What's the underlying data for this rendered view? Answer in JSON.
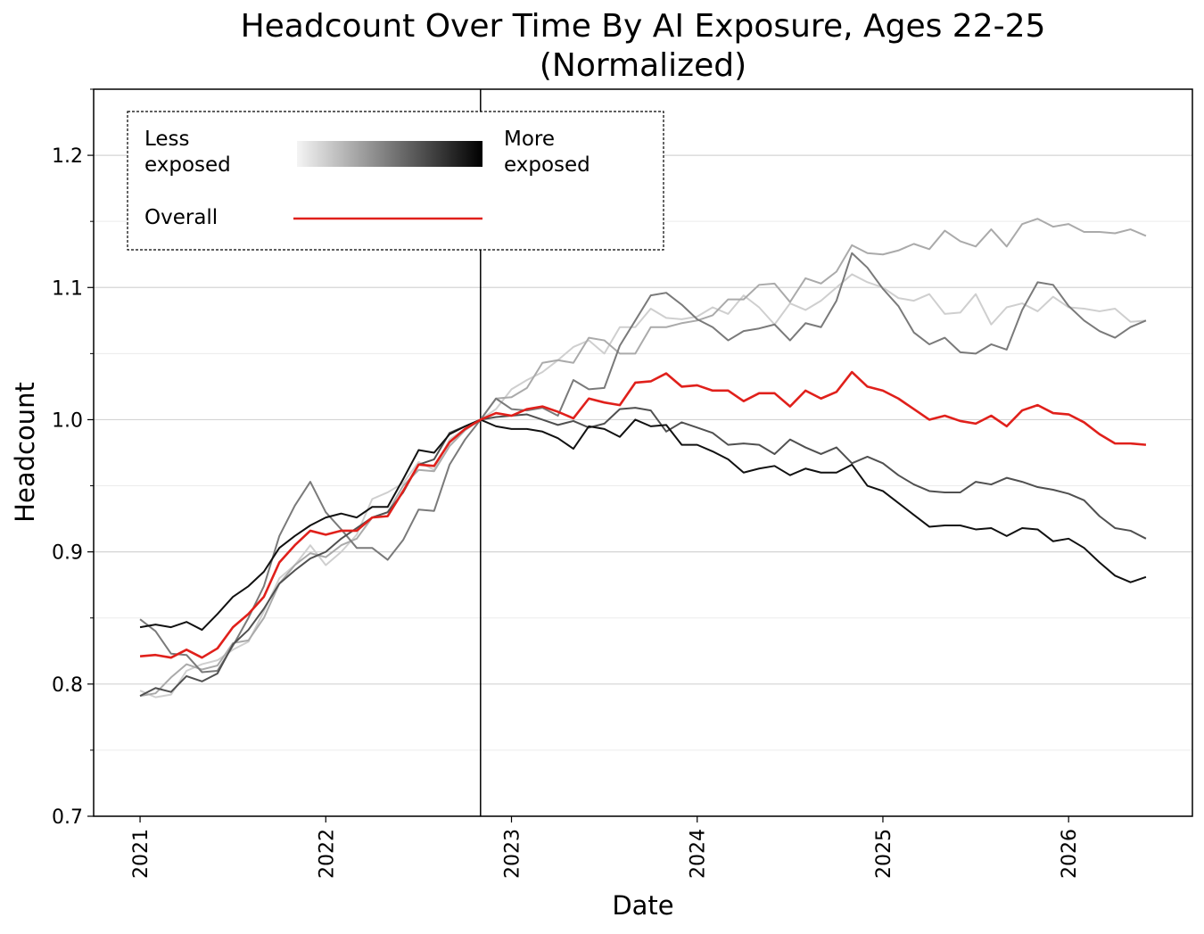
{
  "chart_data": {
    "type": "line",
    "title": "Headcount Over Time By AI Exposure, Ages 22-25\n(Normalized)",
    "x_label": "Date",
    "y_label": "Headcount",
    "legend": {
      "less": "Less exposed",
      "more": "More exposed",
      "gradient": [
        "#f4f4f4",
        "#000000"
      ]
    },
    "vline": "2022-11",
    "xlim": [
      "2020-10",
      "2026-09"
    ],
    "xticks": [
      2021,
      2022,
      2023,
      2024,
      2025,
      2026
    ],
    "ylim": [
      0.7,
      1.25
    ],
    "yticks": [
      0.7,
      0.8,
      0.9,
      {
        "value": 1,
        "label": "1.0"
      },
      1.1,
      1.2
    ],
    "yminorticks": [
      0.75,
      0.85,
      0.95,
      1.05,
      1.15,
      1.25
    ],
    "grid": true,
    "x": [
      "2021-01",
      "2021-02",
      "2021-03",
      "2021-04",
      "2021-05",
      "2021-06",
      "2021-07",
      "2021-08",
      "2021-09",
      "2021-10",
      "2021-11",
      "2021-12",
      "2022-01",
      "2022-02",
      "2022-03",
      "2022-04",
      "2022-05",
      "2022-06",
      "2022-07",
      "2022-08",
      "2022-09",
      "2022-10",
      "2022-11",
      "2022-12",
      "2023-01",
      "2023-02",
      "2023-03",
      "2023-04",
      "2023-05",
      "2023-06",
      "2023-07",
      "2023-08",
      "2023-09",
      "2023-10",
      "2023-11",
      "2023-12",
      "2024-01",
      "2024-02",
      "2024-03",
      "2024-04",
      "2024-05",
      "2024-06",
      "2024-07",
      "2024-08",
      "2024-09",
      "2024-10",
      "2024-11",
      "2024-12",
      "2025-01",
      "2025-02",
      "2025-03",
      "2025-04",
      "2025-05",
      "2025-06",
      "2025-07",
      "2025-08",
      "2025-09",
      "2025-10",
      "2025-11",
      "2025-12",
      "2026-01",
      "2026-02",
      "2026-03",
      "2026-04",
      "2026-05",
      "2026-06"
    ],
    "series": [
      {
        "color": "#cfcfcf",
        "values": [
          0.795,
          0.79,
          0.792,
          0.81,
          0.815,
          0.818,
          0.826,
          0.832,
          0.855,
          0.88,
          0.89,
          0.905,
          0.89,
          0.9,
          0.913,
          0.94,
          0.945,
          0.952,
          0.968,
          0.962,
          0.985,
          0.993,
          1.0,
          1.008,
          1.023,
          1.03,
          1.036,
          1.045,
          1.055,
          1.06,
          1.05,
          1.07,
          1.07,
          1.084,
          1.077,
          1.076,
          1.078,
          1.085,
          1.08,
          1.094,
          1.085,
          1.072,
          1.088,
          1.083,
          1.09,
          1.1,
          1.11,
          1.104,
          1.1,
          1.092,
          1.09,
          1.095,
          1.08,
          1.081,
          1.095,
          1.072,
          1.085,
          1.088,
          1.082,
          1.093,
          1.085,
          1.084,
          1.082,
          1.084,
          1.074,
          1.075
        ]
      },
      {
        "color": "#aaaaaa",
        "values": [
          0.791,
          0.793,
          0.805,
          0.815,
          0.811,
          0.814,
          0.831,
          0.833,
          0.85,
          0.876,
          0.89,
          0.899,
          0.896,
          0.905,
          0.91,
          0.926,
          0.93,
          0.95,
          0.962,
          0.961,
          0.98,
          0.992,
          1.0,
          1.016,
          1.017,
          1.024,
          1.043,
          1.045,
          1.043,
          1.062,
          1.06,
          1.05,
          1.05,
          1.07,
          1.07,
          1.073,
          1.075,
          1.079,
          1.091,
          1.091,
          1.102,
          1.103,
          1.089,
          1.107,
          1.103,
          1.112,
          1.132,
          1.126,
          1.125,
          1.128,
          1.133,
          1.129,
          1.143,
          1.135,
          1.131,
          1.144,
          1.131,
          1.148,
          1.152,
          1.146,
          1.148,
          1.142,
          1.142,
          1.141,
          1.144,
          1.139
        ]
      },
      {
        "color": "#7a7a7a",
        "values": [
          0.849,
          0.84,
          0.823,
          0.822,
          0.809,
          0.81,
          0.829,
          0.85,
          0.874,
          0.912,
          0.935,
          0.953,
          0.93,
          0.917,
          0.903,
          0.903,
          0.894,
          0.909,
          0.932,
          0.931,
          0.966,
          0.985,
          1.0,
          1.016,
          1.008,
          1.007,
          1.009,
          1.003,
          1.03,
          1.023,
          1.024,
          1.056,
          1.075,
          1.094,
          1.096,
          1.087,
          1.076,
          1.07,
          1.06,
          1.067,
          1.069,
          1.072,
          1.06,
          1.073,
          1.07,
          1.09,
          1.126,
          1.115,
          1.099,
          1.086,
          1.066,
          1.057,
          1.062,
          1.051,
          1.05,
          1.057,
          1.053,
          1.083,
          1.104,
          1.102,
          1.086,
          1.075,
          1.067,
          1.062,
          1.07,
          1.075
        ]
      },
      {
        "color": "#505050",
        "values": [
          0.791,
          0.797,
          0.794,
          0.806,
          0.802,
          0.808,
          0.83,
          0.841,
          0.857,
          0.876,
          0.886,
          0.895,
          0.9,
          0.91,
          0.918,
          0.926,
          0.93,
          0.945,
          0.966,
          0.97,
          0.99,
          0.995,
          1.0,
          1.002,
          1.003,
          1.004,
          1.0,
          0.996,
          0.999,
          0.994,
          0.997,
          1.008,
          1.009,
          1.007,
          0.991,
          0.998,
          0.994,
          0.99,
          0.981,
          0.982,
          0.981,
          0.974,
          0.985,
          0.979,
          0.974,
          0.979,
          0.967,
          0.972,
          0.967,
          0.958,
          0.951,
          0.946,
          0.945,
          0.945,
          0.953,
          0.951,
          0.956,
          0.953,
          0.949,
          0.947,
          0.944,
          0.939,
          0.927,
          0.918,
          0.916,
          0.91
        ]
      },
      {
        "color": "#111111",
        "values": [
          0.843,
          0.845,
          0.843,
          0.847,
          0.841,
          0.853,
          0.866,
          0.874,
          0.885,
          0.903,
          0.912,
          0.92,
          0.926,
          0.929,
          0.926,
          0.934,
          0.934,
          0.955,
          0.977,
          0.975,
          0.989,
          0.995,
          1.0,
          0.995,
          0.993,
          0.993,
          0.991,
          0.986,
          0.978,
          0.995,
          0.993,
          0.987,
          1.0,
          0.995,
          0.996,
          0.981,
          0.981,
          0.976,
          0.97,
          0.96,
          0.963,
          0.965,
          0.958,
          0.963,
          0.96,
          0.96,
          0.966,
          0.95,
          0.946,
          0.937,
          0.928,
          0.919,
          0.92,
          0.92,
          0.917,
          0.918,
          0.912,
          0.918,
          0.917,
          0.908,
          0.91,
          0.903,
          0.892,
          0.882,
          0.877,
          0.881
        ]
      },
      {
        "name": "Overall",
        "color": "#e0201b",
        "values": [
          0.821,
          0.822,
          0.82,
          0.826,
          0.82,
          0.827,
          0.843,
          0.853,
          0.866,
          0.892,
          0.905,
          0.916,
          0.913,
          0.916,
          0.916,
          0.926,
          0.927,
          0.946,
          0.966,
          0.965,
          0.983,
          0.993,
          1.0,
          1.005,
          1.003,
          1.008,
          1.01,
          1.006,
          1.001,
          1.016,
          1.013,
          1.011,
          1.028,
          1.029,
          1.035,
          1.025,
          1.026,
          1.022,
          1.022,
          1.014,
          1.02,
          1.02,
          1.01,
          1.022,
          1.016,
          1.021,
          1.036,
          1.025,
          1.022,
          1.016,
          1.008,
          1.0,
          1.003,
          0.999,
          0.997,
          1.003,
          0.995,
          1.007,
          1.011,
          1.005,
          1.004,
          0.998,
          0.989,
          0.982,
          0.982,
          0.981
        ]
      }
    ]
  }
}
